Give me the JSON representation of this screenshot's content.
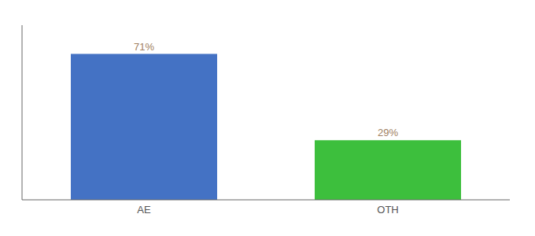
{
  "chart_data": {
    "type": "bar",
    "categories": [
      "AE",
      "OTH"
    ],
    "values": [
      71,
      29
    ],
    "value_labels": [
      "71%",
      "29%"
    ],
    "colors": [
      "#4472c4",
      "#3dbf3d"
    ],
    "ylim": [
      0,
      85
    ],
    "data_labels": true,
    "tick_labels": "x",
    "grid": false
  }
}
